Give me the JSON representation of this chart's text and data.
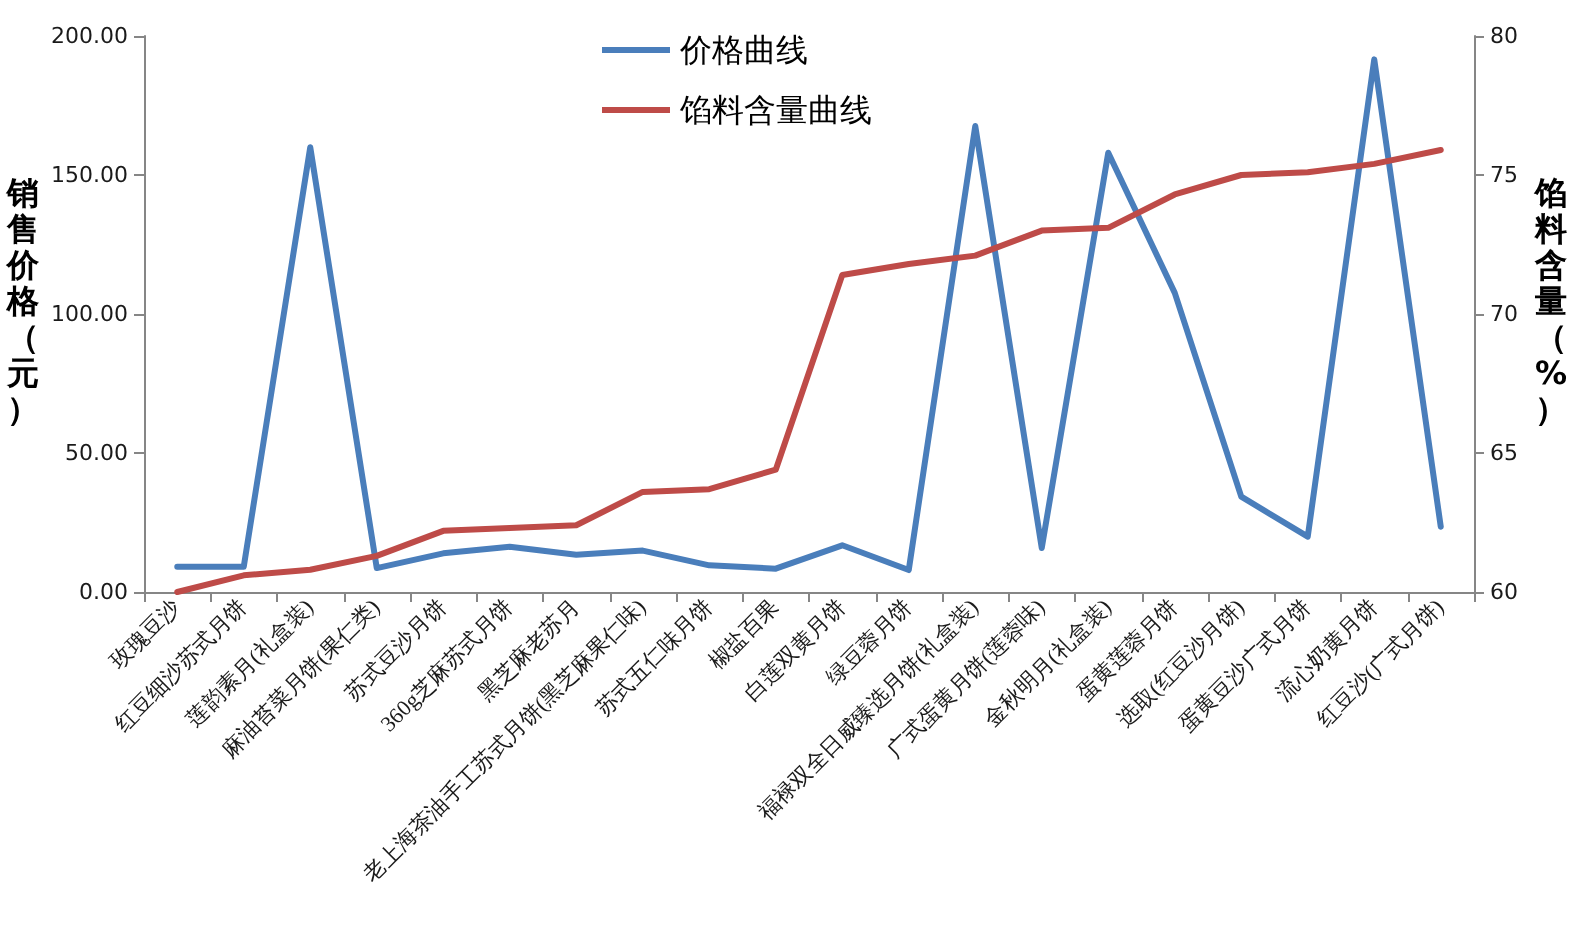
{
  "chart_data": {
    "type": "line",
    "ylabel": "销售价格（元）",
    "y2label": "馅料含量（%）",
    "categories": [
      "玫瑰豆沙",
      "红豆细沙苏式月饼",
      "莲韵素月(礼盒装)",
      "麻油苔菜月饼(果仁类)",
      "苏式豆沙月饼",
      "360g芝麻苏式月饼",
      "黑芝麻老苏月",
      "老上海茶油手工苏式月饼(黑芝麻果仁味)",
      "苏式五仁味月饼",
      "椒盐百果",
      "白莲双黄月饼",
      "绿豆蓉月饼",
      "福禄双全日威臻选月饼(礼盒装)",
      "广式蛋黄月饼(莲蓉味)",
      "金秋明月(礼盒装)",
      "蛋黄莲蓉月饼",
      "选取(红豆沙月饼)",
      "蛋黄豆沙广式月饼",
      "流心奶黄月饼",
      "红豆沙(广式月饼)"
    ],
    "series": [
      {
        "name": "价格曲线",
        "color": "#4a7ebb",
        "values": [
          9.1,
          9.1,
          160,
          8.6,
          13.9,
          16.3,
          13.4,
          14.9,
          9.6,
          8.4,
          16.8,
          7.9,
          167.6,
          15.8,
          158,
          107.6,
          34.3,
          19.9,
          191.6,
          23.5
        ]
      },
      {
        "name": "馅料含量曲线",
        "color": "#be4b48",
        "axis": "y2",
        "values": [
          60.0,
          60.6,
          60.8,
          61.3,
          62.2,
          62.3,
          62.4,
          63.6,
          63.7,
          64.4,
          71.4,
          71.8,
          72.1,
          73.0,
          73.1,
          74.3,
          75.0,
          75.1,
          75.4,
          75.9
        ]
      }
    ],
    "ylim": [
      0,
      200
    ],
    "yticks": [
      {
        "value": 0,
        "label": "0.00"
      },
      {
        "value": 50,
        "label": "50.00"
      },
      {
        "value": 100,
        "label": "100.00"
      },
      {
        "value": 150,
        "label": "150.00"
      },
      {
        "value": 200,
        "label": "200.00"
      }
    ],
    "y2lim": [
      60,
      80
    ],
    "y2ticks": [
      60,
      65,
      70,
      75,
      80
    ],
    "legend": "top",
    "marker": "none",
    "line_style": "solid"
  }
}
